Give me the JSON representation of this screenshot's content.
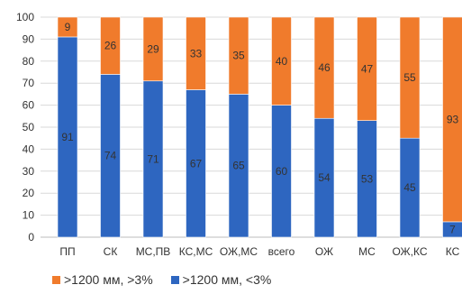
{
  "chart_data": {
    "type": "bar",
    "stacked": true,
    "categories": [
      "ПП",
      "СК",
      "МС,ПВ",
      "КС,МС",
      "ОЖ,МС",
      "всего",
      "ОЖ",
      "МС",
      "ОЖ,КС",
      "КС"
    ],
    "series": [
      {
        "name": ">1200 мм, <3%",
        "color": "#2e66c0",
        "values": [
          91,
          74,
          71,
          67,
          65,
          60,
          54,
          53,
          45,
          7
        ]
      },
      {
        "name": ">1200 мм, >3%",
        "color": "#f07b2c",
        "values": [
          9,
          26,
          29,
          33,
          35,
          40,
          46,
          47,
          55,
          93
        ]
      }
    ],
    "ylim": [
      0,
      100
    ],
    "yticks": [
      0,
      10,
      20,
      30,
      40,
      50,
      60,
      70,
      80,
      90,
      100
    ],
    "grid": true,
    "legend_position": "bottom"
  }
}
